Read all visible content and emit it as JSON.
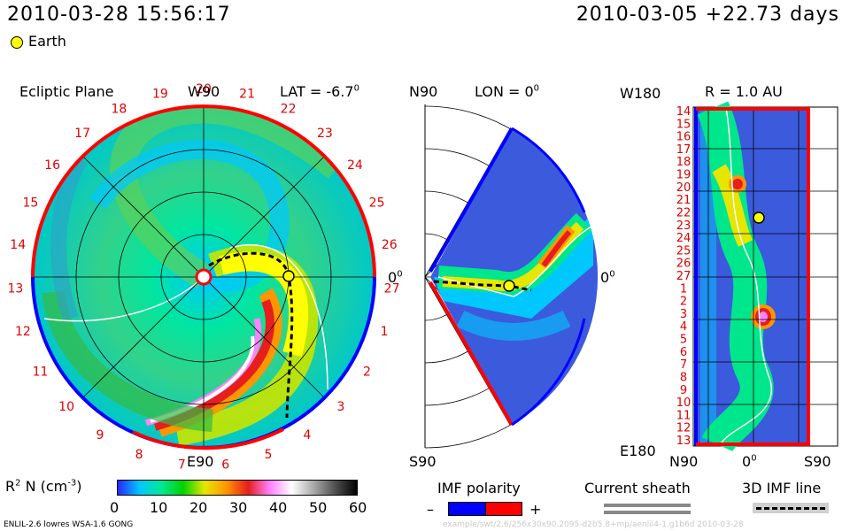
{
  "header": {
    "datetime": "2010-03-28 15:56:17",
    "reference": "2010-03-05 +22.73 days",
    "legend_earth": "Earth"
  },
  "ecliptic_panel": {
    "title": "Ecliptic Plane",
    "top_label": "W90",
    "bottom_label": "E90",
    "right_label": "0",
    "right_label_sup": "0",
    "lat_label": "LAT = -6.7",
    "lat_sup": "0",
    "day_labels": [
      "20",
      "21",
      "22",
      "23",
      "24",
      "25",
      "26",
      "27",
      "1",
      "2",
      "3",
      "4",
      "5",
      "6",
      "7",
      "8",
      "9",
      "10",
      "11",
      "12",
      "13",
      "14",
      "15",
      "16",
      "17",
      "18",
      "19"
    ]
  },
  "meridional_panel": {
    "top_label": "N90",
    "bottom_label": "S90",
    "lon_label": "LON = 0",
    "lon_sup": "0",
    "right_label": "0",
    "right_label_sup": "0"
  },
  "radial_panel": {
    "title": "R = 1.0 AU",
    "top_left_label": "W180",
    "bottom_left_label": "E180",
    "x_labels": [
      "N90",
      "0",
      "S90"
    ],
    "x_mid_sup": "0",
    "y_labels": [
      "14",
      "15",
      "16",
      "17",
      "18",
      "19",
      "20",
      "21",
      "22",
      "23",
      "24",
      "25",
      "26",
      "27",
      "1",
      "2",
      "3",
      "4",
      "5",
      "6",
      "7",
      "8",
      "9",
      "10",
      "11",
      "12",
      "13"
    ]
  },
  "colorbar": {
    "label_main": "R",
    "label_sup": "2",
    "label_rest": " N (cm",
    "label_exp": "-3",
    "label_end": ")",
    "ticks": [
      "0",
      "10",
      "20",
      "30",
      "40",
      "50",
      "60"
    ],
    "colors": [
      "#2828ff",
      "#00c8ff",
      "#00e896",
      "#00d200",
      "#e6e600",
      "#ff9600",
      "#e61e1e",
      "#ff82ff",
      "#ffffff",
      "#aaaaaa",
      "#505050",
      "#000000"
    ]
  },
  "imf_polarity": {
    "title": "IMF polarity",
    "minus": "–",
    "plus": "+",
    "negative_color": "#0000ff",
    "positive_color": "#ff0000"
  },
  "current_sheath": {
    "title": "Current sheath"
  },
  "imf_line": {
    "title": "3D IMF line"
  },
  "footer": {
    "model": "ENLIL-2.6 lowres WSA-1.6 GONG",
    "watermark": "example/swt/2.6/256x30x90.2095-d2b5.8+mp/aenlil4-1.g1b6d     2010-03-28"
  }
}
